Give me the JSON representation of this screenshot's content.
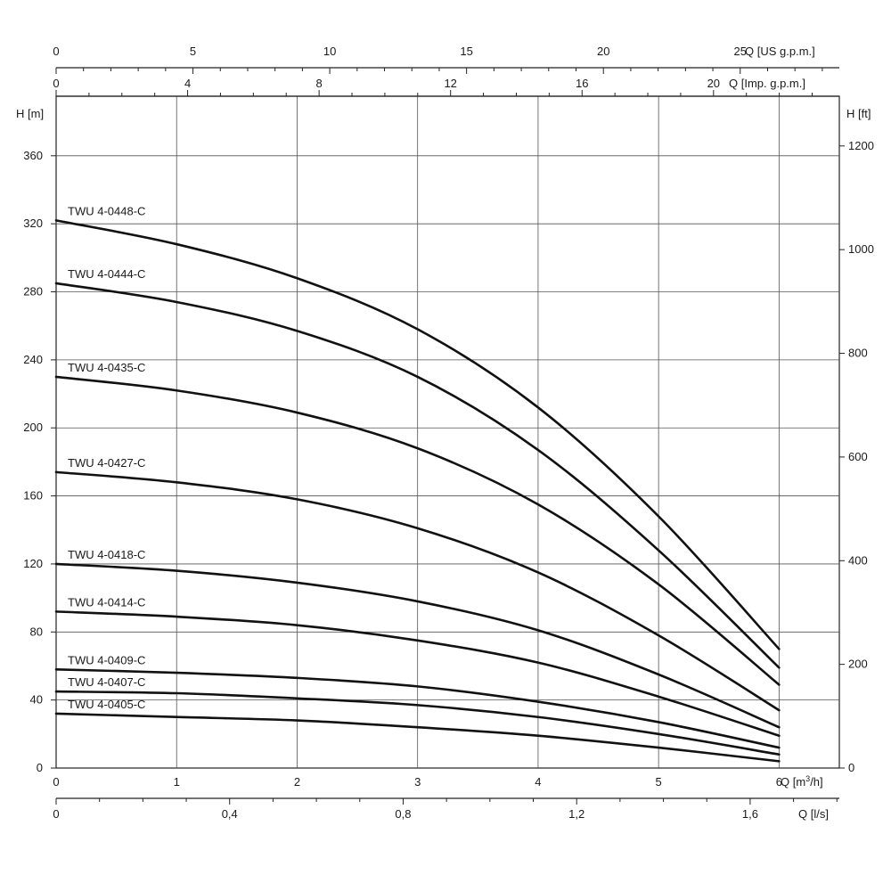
{
  "chart_data": {
    "type": "line",
    "title": "",
    "x_axes": {
      "m3h": {
        "label": "Q [m³/h]",
        "label_main": "Q [m",
        "label_sup": "3",
        "label_end": "/h]",
        "ticks": [
          "0",
          "1",
          "2",
          "3",
          "4",
          "5",
          "6"
        ],
        "range": [
          0,
          6.5
        ]
      },
      "ls": {
        "label": "Q [l/s]",
        "ticks": [
          "0",
          "0,4",
          "0,8",
          "1,2",
          "1,6"
        ],
        "tick_values": [
          0,
          0.4,
          0.8,
          1.2,
          1.6
        ]
      },
      "imp_gpm": {
        "label": "Q [Imp. g.p.m.]",
        "ticks": [
          "0",
          "4",
          "8",
          "12",
          "16",
          "20"
        ],
        "tick_values": [
          0,
          4,
          8,
          12,
          16,
          20
        ]
      },
      "us_gpm": {
        "label": "Q [US g.p.m.]",
        "ticks": [
          "0",
          "5",
          "10",
          "15",
          "20",
          "25"
        ],
        "tick_values": [
          0,
          5,
          10,
          15,
          20,
          25
        ]
      }
    },
    "y_axes": {
      "m": {
        "label": "H [m]",
        "ticks": [
          "0",
          "40",
          "80",
          "120",
          "160",
          "200",
          "240",
          "280",
          "320",
          "360"
        ],
        "tick_values": [
          0,
          40,
          80,
          120,
          160,
          200,
          240,
          280,
          320,
          360
        ],
        "range": [
          0,
          395
        ]
      },
      "ft": {
        "label": "H [ft]",
        "ticks": [
          "0",
          "200",
          "400",
          "600",
          "800",
          "1000",
          "1200"
        ],
        "tick_values": [
          0,
          200,
          400,
          600,
          800,
          1000,
          1200
        ]
      }
    },
    "grid": true,
    "x": [
      0,
      1,
      2,
      3,
      4,
      5,
      6
    ],
    "series": [
      {
        "name": "TWU 4-0448-C",
        "values": [
          322,
          308,
          288,
          258,
          212,
          148,
          70
        ]
      },
      {
        "name": "TWU 4-0444-C",
        "values": [
          285,
          274,
          257,
          230,
          187,
          128,
          59
        ]
      },
      {
        "name": "TWU 4-0435-C",
        "values": [
          230,
          222,
          209,
          188,
          155,
          108,
          49
        ]
      },
      {
        "name": "TWU 4-0427-C",
        "values": [
          174,
          168,
          158,
          141,
          115,
          78,
          34
        ]
      },
      {
        "name": "TWU 4-0418-C",
        "values": [
          120,
          116,
          109,
          98,
          81,
          55,
          24
        ]
      },
      {
        "name": "TWU 4-0414-C",
        "values": [
          92,
          89,
          84,
          75,
          62,
          42,
          19
        ]
      },
      {
        "name": "TWU 4-0409-C",
        "values": [
          58,
          56,
          53,
          48,
          39,
          27,
          12
        ]
      },
      {
        "name": "TWU 4-0407-C",
        "values": [
          45,
          44,
          41,
          37,
          30,
          20,
          8
        ]
      },
      {
        "name": "TWU 4-0405-C",
        "values": [
          32,
          30,
          28,
          24,
          19,
          12,
          4
        ]
      }
    ]
  }
}
